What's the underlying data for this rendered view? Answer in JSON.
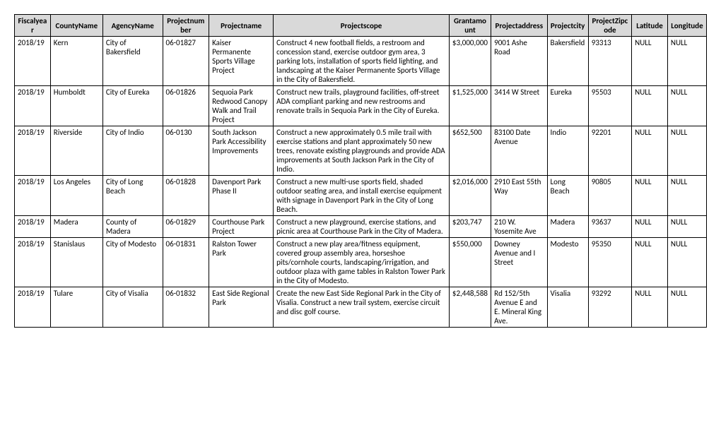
{
  "table": {
    "columns": [
      "Fiscalyear",
      "CountyName",
      "AgencyName",
      "Projectnumber",
      "Projectname",
      "Projectscope",
      "Grantamount",
      "Projectaddress",
      "Projectcity",
      "ProjectZipcode",
      "Latitude",
      "Longitude"
    ],
    "rows": [
      {
        "fy": "2018/19",
        "county": "Kern",
        "agency": "City of Bakersfield",
        "pnum": "06-01827",
        "pname": "Kaiser Permanente Sports Village Project",
        "scope": "Construct 4 new football fields, a restroom and concession stand, exercise outdoor gym area, 3 parking lots, installation of sports field lighting, and landscaping at the Kaiser Permanente Sports Village in the City of Bakersfield.",
        "grant": "$3,000,000",
        "addr": "9001 Ashe Road",
        "city": "Bakersfield",
        "zip": "93313",
        "lat": "NULL",
        "lon": "NULL"
      },
      {
        "fy": "2018/19",
        "county": "Humboldt",
        "agency": "City of Eureka",
        "pnum": "06-01826",
        "pname": "Sequoia Park Redwood Canopy Walk and Trail Project",
        "scope": "Construct new trails, playground facilities, off-street ADA compliant parking and new restrooms and renovate trails in Sequoia Park in the City of Eureka.",
        "grant": "$1,525,000",
        "addr": "3414 W Street",
        "city": "Eureka",
        "zip": "95503",
        "lat": "NULL",
        "lon": "NULL"
      },
      {
        "fy": "2018/19",
        "county": "Riverside",
        "agency": "City of Indio",
        "pnum": "06-0130",
        "pname": "South Jackson Park Accessibility Improvements",
        "scope": "Construct a new approximately 0.5 mile trail with exercise stations and plant approximately 50 new trees, renovate existing playgrounds and provide ADA improvements at South Jackson Park in the City of Indio.",
        "grant": "$652,500",
        "addr": "83100 Date Avenue",
        "city": "Indio",
        "zip": "92201",
        "lat": "NULL",
        "lon": "NULL"
      },
      {
        "fy": "2018/19",
        "county": "Los Angeles",
        "agency": "City of Long Beach",
        "pnum": "06-01828",
        "pname": "Davenport Park Phase II",
        "scope": "Construct a new multi-use sports field, shaded outdoor seating area, and install exercise equipment with signage in Davenport Park in the City of Long Beach.",
        "grant": "$2,016,000",
        "addr": "2910 East 55th Way",
        "city": "Long Beach",
        "zip": "90805",
        "lat": "NULL",
        "lon": "NULL"
      },
      {
        "fy": "2018/19",
        "county": "Madera",
        "agency": "County of Madera",
        "pnum": "06-01829",
        "pname": "Courthouse Park Project",
        "scope": "Construct a new playground, exercise stations, and picnic area at Courthouse Park in the City of Madera.",
        "grant": "$203,747",
        "addr": "210 W. Yosemite Ave",
        "city": "Madera",
        "zip": "93637",
        "lat": "NULL",
        "lon": "NULL"
      },
      {
        "fy": "2018/19",
        "county": "Stanislaus",
        "agency": "City of Modesto",
        "pnum": "06-01831",
        "pname": "Ralston Tower Park",
        "scope": "Construct a new play area/fitness equipment, covered group assembly area, horseshoe pits/cornhole courts, landscaping/irrigation, and outdoor plaza with game tables in Ralston Tower Park in the City of Modesto.",
        "grant": "$550,000",
        "addr": "Downey Avenue and I Street",
        "city": "Modesto",
        "zip": "95350",
        "lat": "NULL",
        "lon": "NULL"
      },
      {
        "fy": "2018/19",
        "county": "Tulare",
        "agency": "City of Visalia",
        "pnum": "06-01832",
        "pname": "East Side Regional Park",
        "scope": "Create the new East Side Regional Park in the City of Visalia.  Construct a new trail system, exercise circuit and disc golf course.",
        "grant": "$2,448,588",
        "addr": "Rd 152/5th Avenue E and E. Mineral King Ave.",
        "city": "Visalia",
        "zip": "93292",
        "lat": "NULL",
        "lon": "NULL"
      }
    ],
    "header_bg": "#d9d9d9",
    "border_color": "#000000",
    "font_family": "Calibri",
    "font_size_pt": 11
  }
}
